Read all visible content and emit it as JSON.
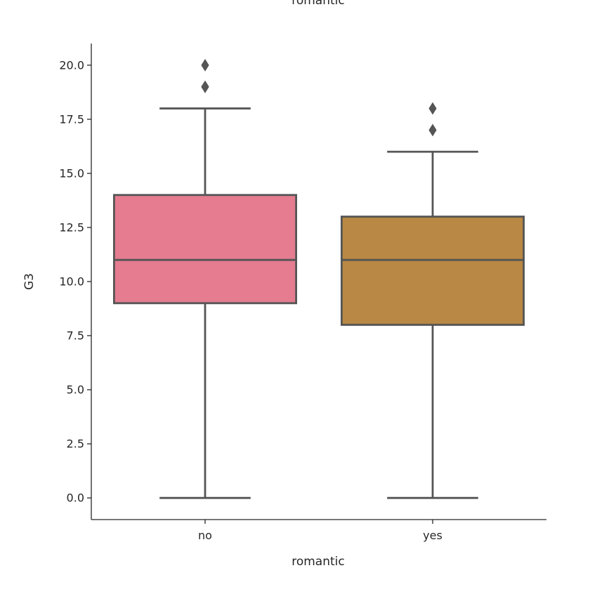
{
  "chart_data": {
    "type": "box",
    "title": "romantic",
    "xlabel": "romantic",
    "ylabel": "G3",
    "categories": [
      "no",
      "yes"
    ],
    "ylim": [
      -1,
      21
    ],
    "yticks": [
      "0.0",
      "2.5",
      "5.0",
      "7.5",
      "10.0",
      "12.5",
      "15.0",
      "17.5",
      "20.0"
    ],
    "grid": false,
    "boxes": [
      {
        "category": "no",
        "whisker_low": 0,
        "q1": 9,
        "median": 11,
        "q3": 14,
        "whisker_high": 18,
        "outliers": [
          19,
          19,
          20
        ],
        "color": "#e57c90"
      },
      {
        "category": "yes",
        "whisker_low": 0,
        "q1": 8,
        "median": 11,
        "q3": 13,
        "whisker_high": 16,
        "outliers": [
          17,
          18
        ],
        "color": "#b98844"
      }
    ],
    "line_color": "#555555"
  }
}
